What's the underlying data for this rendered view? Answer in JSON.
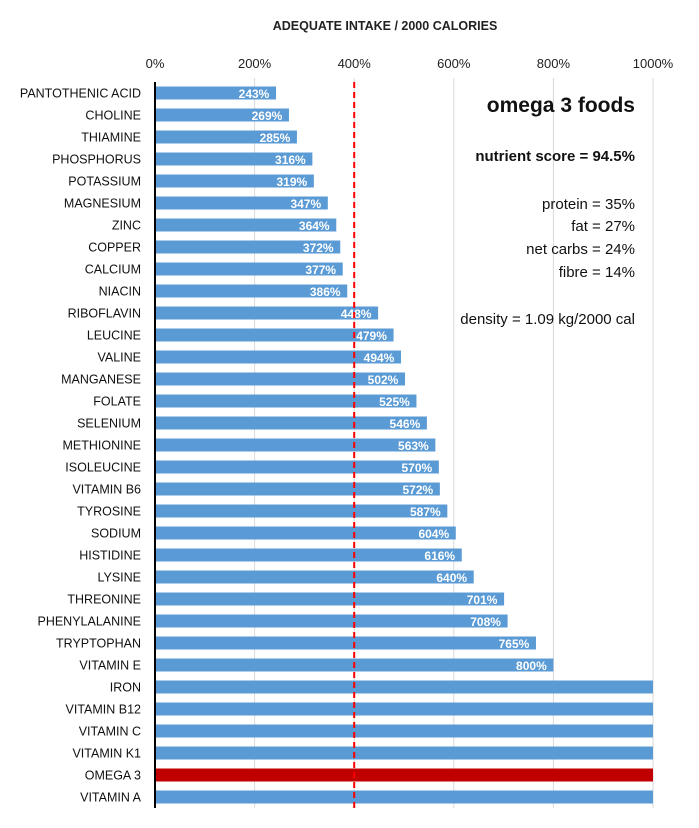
{
  "chart_data": {
    "type": "bar",
    "orientation": "horizontal",
    "title": "ADEQUATE INTAKE / 2000 CALORIES",
    "xlim": [
      0,
      1000
    ],
    "xticks": [
      0,
      200,
      400,
      600,
      800,
      1000
    ],
    "xtick_labels": [
      "0%",
      "200%",
      "400%",
      "600%",
      "800%",
      "1000%"
    ],
    "reference_line": 400,
    "bar_color": "#5B9BD5",
    "highlight_color": "#C00000",
    "reference_color": "#FF0000",
    "highlight_category": "OMEGA 3",
    "categories": [
      "PANTOTHENIC ACID",
      "CHOLINE",
      "THIAMINE",
      "PHOSPHORUS",
      "POTASSIUM",
      "MAGNESIUM",
      "ZINC",
      "COPPER",
      "CALCIUM",
      "NIACIN",
      "RIBOFLAVIN",
      "LEUCINE",
      "VALINE",
      "MANGANESE",
      "FOLATE",
      "SELENIUM",
      "METHIONINE",
      "ISOLEUCINE",
      "VITAMIN B6",
      "TYROSINE",
      "SODIUM",
      "HISTIDINE",
      "LYSINE",
      "THREONINE",
      "PHENYLALANINE",
      "TRYPTOPHAN",
      "VITAMIN E",
      "IRON",
      "VITAMIN B12",
      "VITAMIN C",
      "VITAMIN K1",
      "OMEGA 3",
      "VITAMIN A"
    ],
    "values": [
      243,
      269,
      285,
      316,
      319,
      347,
      364,
      372,
      377,
      386,
      448,
      479,
      494,
      502,
      525,
      546,
      563,
      570,
      572,
      587,
      604,
      616,
      640,
      701,
      708,
      765,
      800,
      1000,
      1000,
      1000,
      1000,
      1000,
      1000
    ],
    "data_labels": [
      "243%",
      "269%",
      "285%",
      "316%",
      "319%",
      "347%",
      "364%",
      "372%",
      "377%",
      "386%",
      "448%",
      "479%",
      "494%",
      "502%",
      "525%",
      "546%",
      "563%",
      "570%",
      "572%",
      "587%",
      "604%",
      "616%",
      "640%",
      "701%",
      "708%",
      "765%",
      "800%",
      "",
      "",
      "",
      "",
      "",
      ""
    ]
  },
  "annotations": {
    "title": "omega 3 foods",
    "nutrient_score": "nutrient score = 94.5%",
    "protein": "protein = 35%",
    "fat": "fat = 27%",
    "net_carbs": "net carbs = 24%",
    "fibre": "fibre = 14%",
    "density": "density = 1.09 kg/2000 cal"
  }
}
